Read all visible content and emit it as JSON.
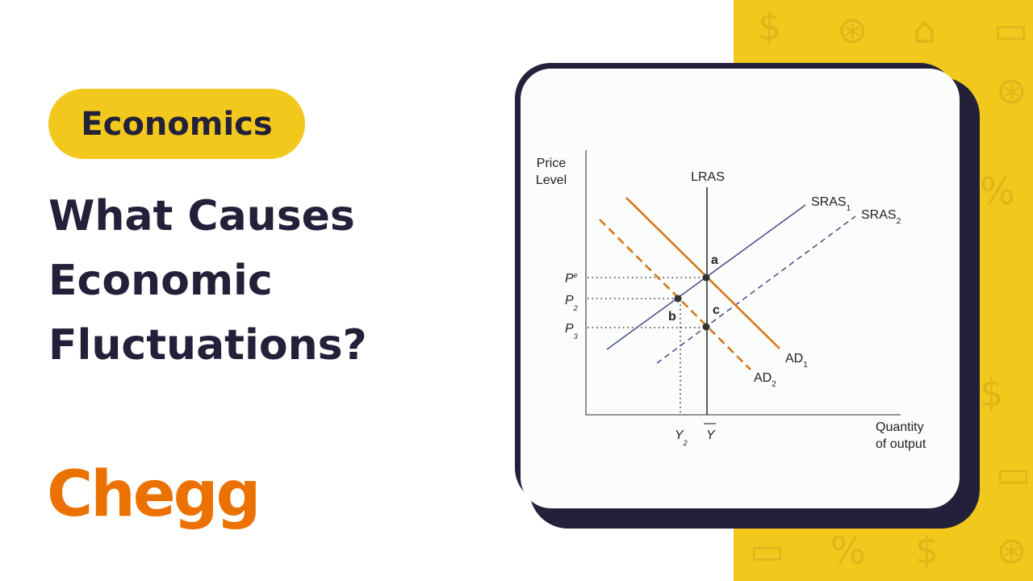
{
  "badge": {
    "label": "Economics"
  },
  "title": {
    "lines": [
      "What Causes",
      "Economic",
      "Fluctuations?"
    ]
  },
  "logo": {
    "text": "Chegg"
  },
  "colors": {
    "accent_yellow": "#f2c81c",
    "dark": "#23213a",
    "brand_orange": "#eb7100",
    "ad_curve": "#d4781c",
    "sras_curve": "#4b4a86"
  },
  "background_icons": [
    "dollar-icon",
    "money-bag-search-icon",
    "chart-briefcase-icon",
    "banknote-icon",
    "percent-icon"
  ],
  "diagram": {
    "y_axis_label": [
      "Price",
      "Level"
    ],
    "x_axis_label": [
      "Quantity",
      "of output"
    ],
    "curves": {
      "lras": "LRAS",
      "sras1": "SRAS",
      "sras1_sub": "1",
      "sras2": "SRAS",
      "sras2_sub": "2",
      "ad1": "AD",
      "ad1_sub": "1",
      "ad2": "AD",
      "ad2_sub": "2"
    },
    "price_labels": {
      "pe": "P",
      "pe_sup": "e",
      "p2": "P",
      "p2_sub": "2",
      "p3": "P",
      "p3_sub": "3"
    },
    "output_labels": {
      "y2": "Y",
      "y2_sub": "2",
      "ybar": "Y"
    },
    "points": {
      "a": "a",
      "b": "b",
      "c": "c"
    }
  }
}
